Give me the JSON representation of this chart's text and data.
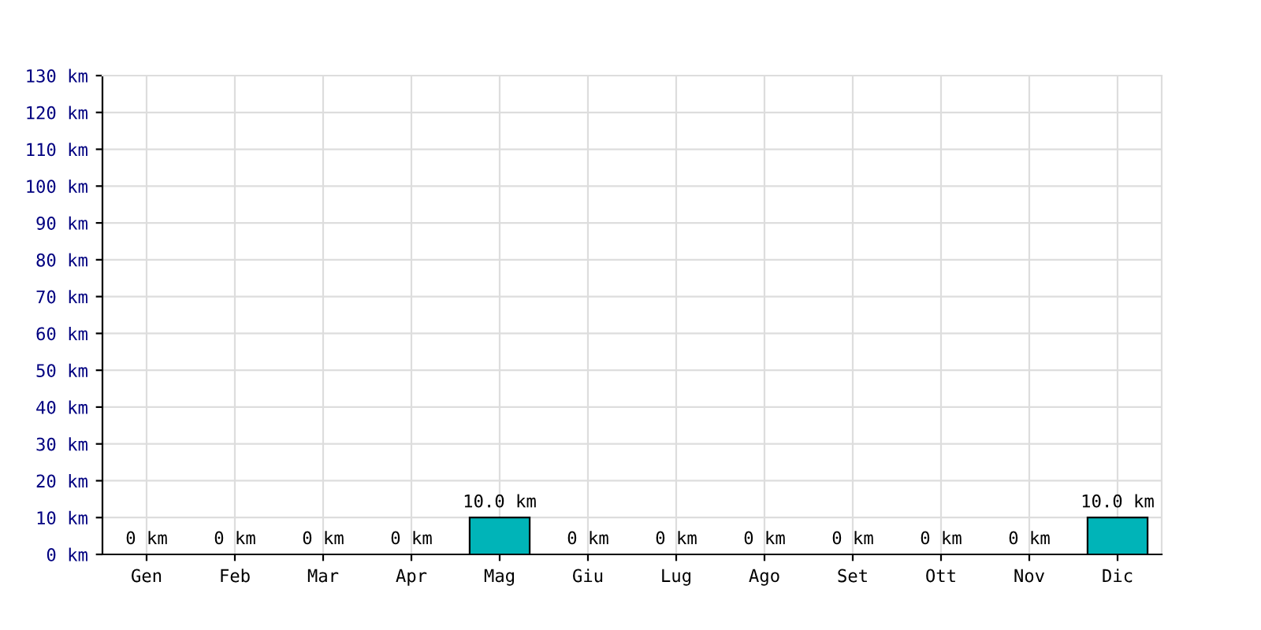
{
  "chart_data": {
    "type": "bar",
    "categories": [
      "Gen",
      "Feb",
      "Mar",
      "Apr",
      "Mag",
      "Giu",
      "Lug",
      "Ago",
      "Set",
      "Ott",
      "Nov",
      "Dic"
    ],
    "values": [
      0,
      0,
      0,
      0,
      10,
      0,
      0,
      0,
      0,
      0,
      0,
      10
    ],
    "value_labels": [
      "0 km",
      "0 km",
      "0 km",
      "0 km",
      "10.0 km",
      "0 km",
      "0 km",
      "0 km",
      "0 km",
      "0 km",
      "0 km",
      "10.0 km"
    ],
    "color": "#00b4b8",
    "ylim": [
      0,
      130
    ],
    "yticks": [
      {
        "value": 0,
        "label": "0 km"
      },
      {
        "value": 10,
        "label": "10 km"
      },
      {
        "value": 20,
        "label": "20 km"
      },
      {
        "value": 30,
        "label": "30 km"
      },
      {
        "value": 40,
        "label": "40 km"
      },
      {
        "value": 50,
        "label": "50 km"
      },
      {
        "value": 60,
        "label": "60 km"
      },
      {
        "value": 70,
        "label": "70 km"
      },
      {
        "value": 80,
        "label": "80 km"
      },
      {
        "value": 90,
        "label": "90 km"
      },
      {
        "value": 100,
        "label": "100 km"
      },
      {
        "value": 110,
        "label": "110 km"
      },
      {
        "value": 120,
        "label": "120 km"
      },
      {
        "value": 130,
        "label": "130 km"
      }
    ],
    "grid": true,
    "legend": false
  }
}
